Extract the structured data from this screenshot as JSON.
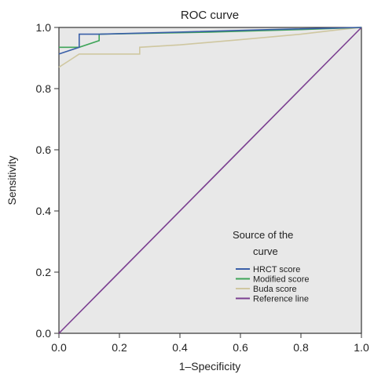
{
  "chart_data": {
    "type": "line",
    "title": "ROC curve",
    "xlabel": "1–Specificity",
    "ylabel": "Sensitivity",
    "xlim": [
      0,
      1
    ],
    "ylim": [
      0,
      1
    ],
    "xticks": [
      "0.0",
      "0.2",
      "0.4",
      "0.6",
      "0.8",
      "1.0"
    ],
    "yticks": [
      "0.0",
      "0.2",
      "0.4",
      "0.6",
      "0.8",
      "1.0"
    ],
    "grid": false,
    "background": "#e8e8e8",
    "legend": {
      "title_line1": "Source of the",
      "title_line2": "curve",
      "position": "bottom-right"
    },
    "series": [
      {
        "name": "HRCT score",
        "color": "#3a5fa8",
        "points": [
          [
            0,
            0.913
          ],
          [
            0.067,
            0.935
          ],
          [
            0.067,
            0.978
          ],
          [
            0.133,
            0.978
          ],
          [
            0.4,
            0.985
          ],
          [
            0.7,
            0.993
          ],
          [
            1.0,
            1.0
          ]
        ]
      },
      {
        "name": "Modified score",
        "color": "#3fa559",
        "points": [
          [
            0,
            0.935
          ],
          [
            0.067,
            0.935
          ],
          [
            0.133,
            0.957
          ],
          [
            0.133,
            0.978
          ],
          [
            0.5,
            0.985
          ],
          [
            0.8,
            0.993
          ],
          [
            1.0,
            1.0
          ]
        ]
      },
      {
        "name": "Buda score",
        "color": "#cfc7a0",
        "points": [
          [
            0,
            0.87
          ],
          [
            0.033,
            0.891
          ],
          [
            0.067,
            0.913
          ],
          [
            0.267,
            0.913
          ],
          [
            0.267,
            0.935
          ],
          [
            0.4,
            0.943
          ],
          [
            0.6,
            0.96
          ],
          [
            0.8,
            0.978
          ],
          [
            0.93,
            0.993
          ],
          [
            1.0,
            1.0
          ]
        ]
      },
      {
        "name": "Reference line",
        "color": "#7b3f91",
        "points": [
          [
            0,
            0
          ],
          [
            1,
            1
          ]
        ]
      }
    ]
  }
}
